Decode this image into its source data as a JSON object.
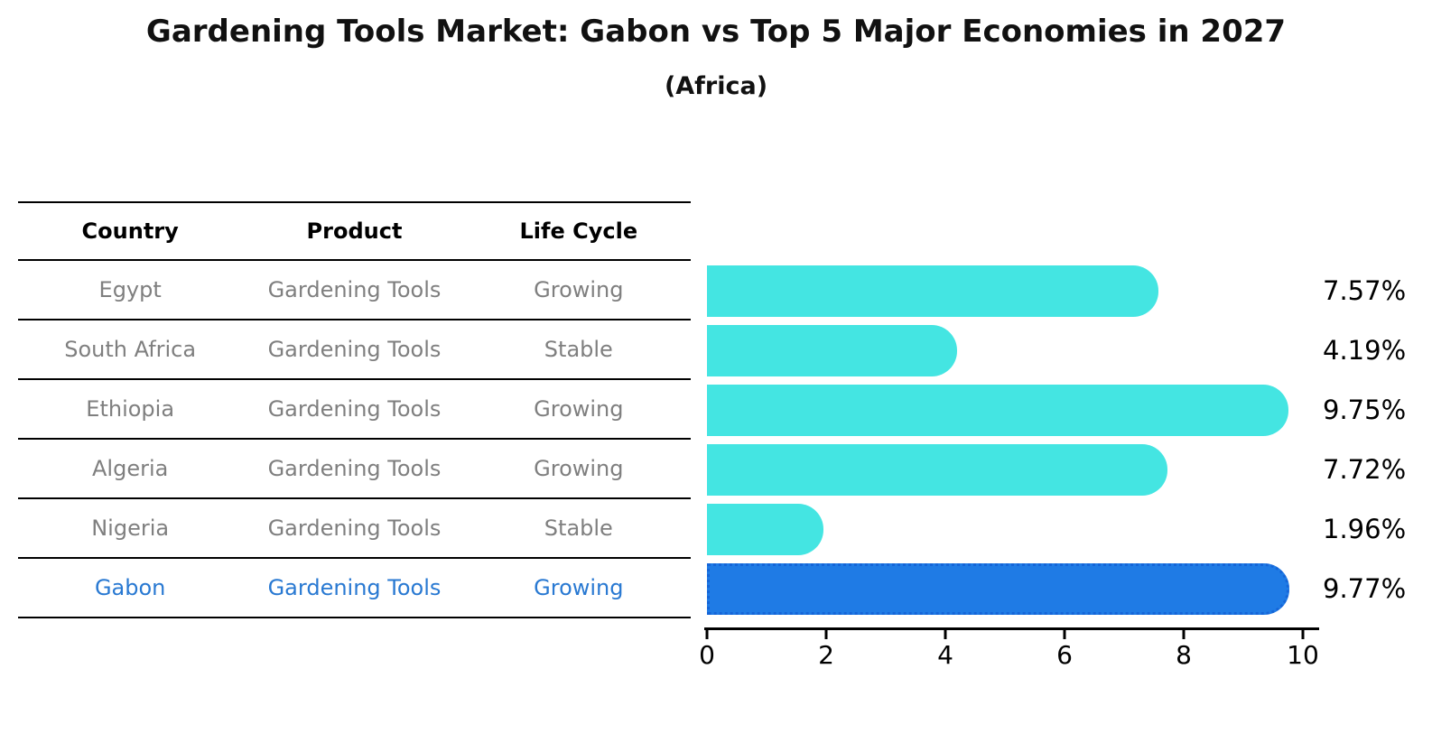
{
  "title": "Gardening Tools Market: Gabon vs Top 5 Major Economies in 2027",
  "subtitle": "(Africa)",
  "table": {
    "headers": [
      "Country",
      "Product",
      "Life Cycle"
    ],
    "rows": [
      {
        "country": "Egypt",
        "product": "Gardening Tools",
        "life_cycle": "Growing",
        "highlighted": false
      },
      {
        "country": "South Africa",
        "product": "Gardening Tools",
        "life_cycle": "Stable",
        "highlighted": false
      },
      {
        "country": "Ethiopia",
        "product": "Gardening Tools",
        "life_cycle": "Growing",
        "highlighted": false
      },
      {
        "country": "Algeria",
        "product": "Gardening Tools",
        "life_cycle": "Growing",
        "highlighted": false
      },
      {
        "country": "Nigeria",
        "product": "Gardening Tools",
        "life_cycle": "Stable",
        "highlighted": false
      },
      {
        "country": "Gabon",
        "product": "Gardening Tools",
        "life_cycle": "Growing",
        "highlighted": true
      }
    ]
  },
  "chart_data": {
    "type": "bar",
    "orientation": "horizontal",
    "title": "Gardening Tools Market: Gabon vs Top 5 Major Economies in 2027",
    "subtitle": "(Africa)",
    "categories": [
      "Egypt",
      "South Africa",
      "Ethiopia",
      "Algeria",
      "Nigeria",
      "Gabon"
    ],
    "values": [
      7.57,
      4.19,
      9.75,
      7.72,
      1.96,
      9.77
    ],
    "value_labels": [
      "7.57%",
      "4.19%",
      "9.75%",
      "7.72%",
      "1.96%",
      "9.77%"
    ],
    "highlight_index": 5,
    "highlight_category": "Gabon",
    "xlim": [
      0,
      10
    ],
    "x_ticks": [
      0,
      2,
      4,
      6,
      8,
      10
    ],
    "grid": false,
    "legend": "none",
    "colors": {
      "bar_default": "#44e5e2",
      "bar_highlight": "#1f7be5",
      "bar_highlight_edge": "#1565d8",
      "highlight_text": "#2979d2",
      "row_text": "#7f7f7f",
      "axis_text": "#000000"
    }
  }
}
